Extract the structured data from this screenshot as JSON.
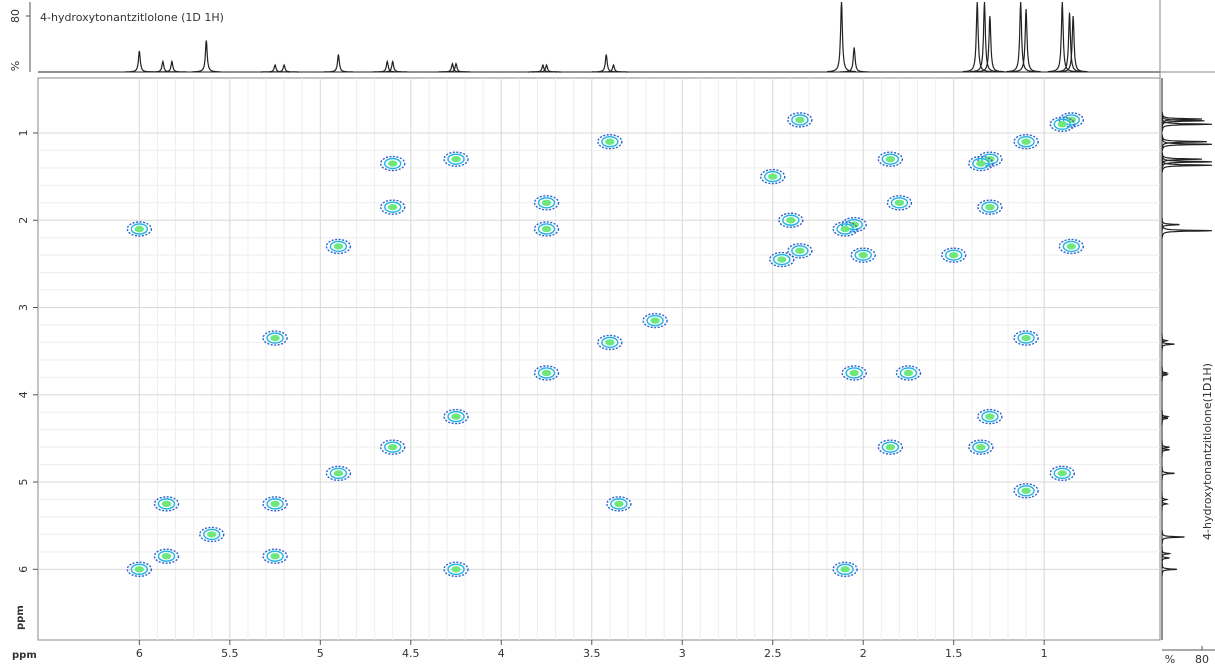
{
  "chart_data": {
    "type": "contour",
    "title": "4-hydroxytonantzitlolone (1D 1H)",
    "side_title": "4-hydroxytonantzitlolone(1D1H)",
    "x_label": "ppm",
    "y_label": "ppm",
    "xlim": [
      6.56,
      0.36
    ],
    "ylim": [
      0.37,
      6.81
    ],
    "xticks": [
      6,
      5.5,
      5,
      4.5,
      4,
      3.5,
      3,
      2.5,
      2,
      1.5,
      1
    ],
    "yticks": [
      1,
      2,
      3,
      4,
      5,
      6
    ],
    "grid": true,
    "colors": [
      "#2f5fd0",
      "#22b4e6",
      "#6ee87a"
    ],
    "peaks": {
      "x": [
        0.85,
        0.9,
        1.1,
        1.3,
        1.35,
        1.8,
        2.05,
        2.1,
        2.35,
        2.45,
        3.15,
        3.4,
        3.75,
        4.25,
        4.6,
        4.9,
        5.25,
        5.6,
        5.85,
        6.0,
        6.0,
        2.1,
        5.85,
        5.25,
        5.25,
        3.35,
        4.9,
        4.6,
        4.6,
        1.35,
        1.85,
        4.25,
        1.3,
        4.25,
        3.75,
        3.75,
        2.05,
        1.75,
        3.4,
        1.1,
        2.35,
        0.85,
        2.0,
        2.4,
        2.5,
        1.5,
        1.1,
        0.9,
        1.3,
        1.85
      ],
      "y": [
        0.85,
        0.9,
        1.1,
        1.3,
        1.35,
        1.8,
        2.05,
        2.1,
        2.35,
        2.45,
        3.15,
        3.4,
        3.75,
        4.25,
        4.6,
        4.9,
        5.25,
        5.6,
        5.85,
        6.0,
        2.1,
        6.0,
        5.25,
        5.85,
        3.35,
        5.25,
        2.3,
        1.35,
        1.85,
        4.6,
        4.6,
        1.3,
        4.25,
        6.0,
        1.8,
        2.1,
        3.75,
        3.75,
        1.1,
        3.35,
        0.85,
        2.3,
        2.4,
        2.0,
        1.5,
        2.4,
        5.1,
        4.9,
        1.85,
        1.3
      ]
    },
    "spectrum": {
      "x": [
        6.0,
        5.87,
        5.82,
        5.63,
        5.25,
        5.2,
        4.9,
        4.63,
        4.6,
        4.27,
        4.25,
        3.77,
        3.75,
        3.42,
        3.38,
        2.12,
        2.05,
        1.37,
        1.33,
        1.3,
        1.13,
        1.1,
        0.9,
        0.86,
        0.84
      ],
      "values": [
        30,
        15,
        15,
        45,
        10,
        10,
        25,
        15,
        15,
        12,
        12,
        10,
        10,
        25,
        10,
        100,
        35,
        100,
        100,
        80,
        100,
        90,
        100,
        85,
        80
      ],
      "ylim": [
        0,
        100
      ],
      "yticks": [
        80
      ],
      "unit_label": "%",
      "color": "#222222"
    }
  }
}
